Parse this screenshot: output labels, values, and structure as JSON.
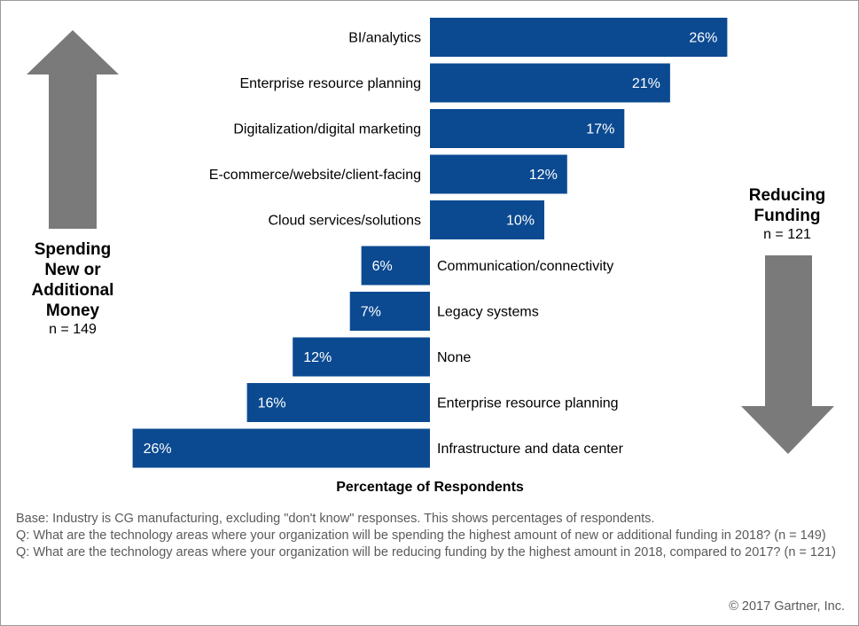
{
  "chart_data": {
    "type": "bar",
    "xlabel": "Percentage of Respondents",
    "value_unit": "%",
    "colors": {
      "bar": "#0b4a91",
      "arrow": "#7a7a7a"
    },
    "groups": [
      {
        "title": "Spending New or Additional Money",
        "title_lines": [
          "Spending",
          "New or",
          "Additional",
          "Money"
        ],
        "n_label": "n = 149",
        "direction": "up",
        "categories": [
          "BI/analytics",
          "Enterprise resource planning",
          "Digitalization/digital marketing",
          "E-commerce/website/client-facing",
          "Cloud services/solutions"
        ],
        "values": [
          26,
          21,
          17,
          12,
          10
        ]
      },
      {
        "title": "Reducing Funding",
        "title_lines": [
          "Reducing",
          "Funding"
        ],
        "n_label": "n = 121",
        "direction": "down",
        "categories": [
          "Communication/connectivity",
          "Legacy systems",
          "None",
          "Enterprise resource planning",
          "Infrastructure and data center"
        ],
        "values": [
          6,
          7,
          12,
          16,
          26
        ]
      }
    ]
  },
  "footnotes": {
    "base": "Base: Industry is CG manufacturing, excluding \"don't know\" responses. This shows percentages of respondents.",
    "q1": "Q: What are the technology areas where your organization will be spending the highest amount of new or additional funding in 2018? (n = 149)",
    "q2": "Q: What are the technology areas where your organization will be reducing funding by the highest amount in 2018, compared to 2017? (n = 121)"
  },
  "copyright": "© 2017 Gartner, Inc."
}
